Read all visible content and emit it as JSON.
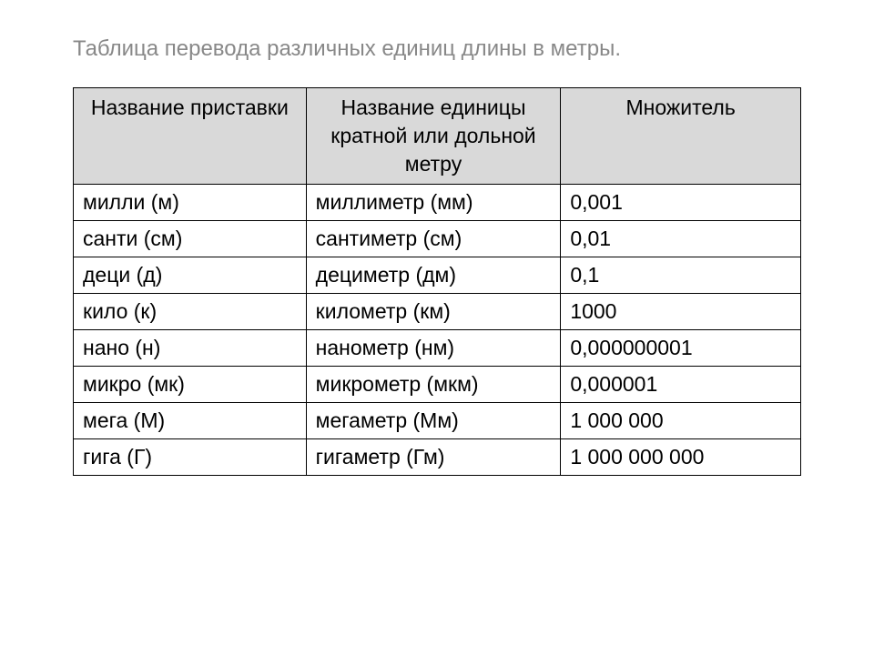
{
  "title": "Таблица перевода различных единиц длины в метры.",
  "table": {
    "type": "table",
    "columns": [
      {
        "label": "Название приставки",
        "width_pct": 32,
        "align": "center"
      },
      {
        "label": "Название единицы кратной или дольной метру",
        "width_pct": 35,
        "align": "center"
      },
      {
        "label": "Множитель",
        "width_pct": 33,
        "align": "center"
      }
    ],
    "rows": [
      [
        "милли (м)",
        "миллиметр (мм)",
        "0,001"
      ],
      [
        "санти (см)",
        "сантиметр (см)",
        "0,01"
      ],
      [
        "деци (д)",
        "дециметр (дм)",
        "0,1"
      ],
      [
        "кило (к)",
        "километр (км)",
        "1000"
      ],
      [
        "нано (н)",
        "нанометр (нм)",
        "0,000000001"
      ],
      [
        "микро (мк)",
        "микрометр (мкм)",
        "0,000001"
      ],
      [
        "мега (М)",
        "мегаметр (Мм)",
        "1 000 000"
      ],
      [
        "гига (Г)",
        "гигаметр (Гм)",
        "1 000 000 000"
      ]
    ],
    "header_bg": "#d9d9d9",
    "border_color": "#000000",
    "body_text_color": "#000000",
    "title_color": "#888888",
    "body_fontsize": 23,
    "title_fontsize": 24
  }
}
